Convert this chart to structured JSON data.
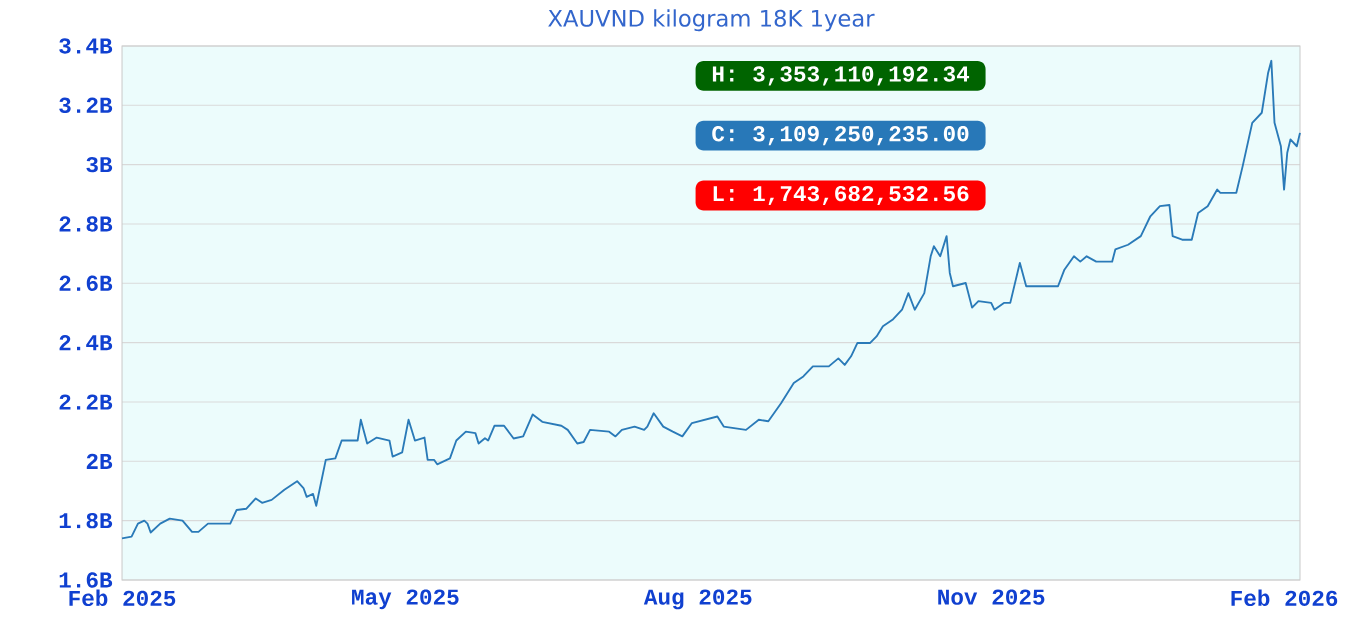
{
  "chart_data": {
    "type": "line",
    "title": "XAUVND kilogram 18K 1year",
    "annotations": [
      "H: 3,353,110,192.34",
      "C: 3,109,250,235.00",
      "L: 1,743,682,532.56"
    ],
    "x": [
      "2025-02-01",
      "2025-02-04",
      "2025-02-06",
      "2025-02-08",
      "2025-02-09",
      "2025-02-10",
      "2025-02-13",
      "2025-02-16",
      "2025-02-20",
      "2025-02-23",
      "2025-02-25",
      "2025-02-28",
      "2025-03-07",
      "2025-03-09",
      "2025-03-12",
      "2025-03-15",
      "2025-03-17",
      "2025-03-20",
      "2025-03-24",
      "2025-03-28",
      "2025-03-30",
      "2025-03-31",
      "2025-04-02",
      "2025-04-03",
      "2025-04-06",
      "2025-04-09",
      "2025-04-11",
      "2025-04-16",
      "2025-04-17",
      "2025-04-19",
      "2025-04-22",
      "2025-04-26",
      "2025-04-27",
      "2025-04-30",
      "2025-05-02",
      "2025-05-04",
      "2025-05-07",
      "2025-05-08",
      "2025-05-10",
      "2025-05-11",
      "2025-05-15",
      "2025-05-17",
      "2025-05-20",
      "2025-05-23",
      "2025-05-24",
      "2025-05-26",
      "2025-05-27",
      "2025-05-29",
      "2025-06-01",
      "2025-06-04",
      "2025-06-07",
      "2025-06-10",
      "2025-06-13",
      "2025-06-19",
      "2025-06-21",
      "2025-06-24",
      "2025-06-26",
      "2025-06-28",
      "2025-07-04",
      "2025-07-06",
      "2025-07-08",
      "2025-07-12",
      "2025-07-15",
      "2025-07-16",
      "2025-07-18",
      "2025-07-21",
      "2025-07-24",
      "2025-07-27",
      "2025-07-30",
      "2025-08-07",
      "2025-08-09",
      "2025-08-16",
      "2025-08-20",
      "2025-08-23",
      "2025-08-27",
      "2025-08-31",
      "2025-09-03",
      "2025-09-06",
      "2025-09-11",
      "2025-09-14",
      "2025-09-16",
      "2025-09-18",
      "2025-09-20",
      "2025-09-24",
      "2025-09-26",
      "2025-09-28",
      "2025-10-01",
      "2025-10-04",
      "2025-10-06",
      "2025-10-08",
      "2025-10-11",
      "2025-10-13",
      "2025-10-14",
      "2025-10-16",
      "2025-10-18",
      "2025-10-19",
      "2025-10-20",
      "2025-10-24",
      "2025-10-26",
      "2025-10-28",
      "2025-11-01",
      "2025-11-02",
      "2025-11-05",
      "2025-11-07",
      "2025-11-10",
      "2025-11-12",
      "2025-11-16",
      "2025-11-22",
      "2025-11-24",
      "2025-11-27",
      "2025-11-29",
      "2025-12-01",
      "2025-12-04",
      "2025-12-09",
      "2025-12-10",
      "2025-12-14",
      "2025-12-18",
      "2025-12-21",
      "2025-12-24",
      "2025-12-27",
      "2025-12-28",
      "2025-12-31",
      "2026-01-03",
      "2026-01-05",
      "2026-01-08",
      "2026-01-11",
      "2026-01-12",
      "2026-01-17",
      "2026-01-19",
      "2026-01-22",
      "2026-01-25",
      "2026-01-27",
      "2026-01-28",
      "2026-01-29",
      "2026-01-31",
      "2026-02-01",
      "2026-02-02",
      "2026-02-03",
      "2026-02-05",
      "2026-02-06"
    ],
    "series": [
      {
        "color": "#2a7ab8",
        "values": [
          1.74,
          1.746,
          1.79,
          1.8,
          1.79,
          1.76,
          1.79,
          1.807,
          1.8,
          1.762,
          1.762,
          1.79,
          1.79,
          1.836,
          1.84,
          1.875,
          1.86,
          1.87,
          1.904,
          1.933,
          1.91,
          1.88,
          1.89,
          1.85,
          2.005,
          2.01,
          2.07,
          2.07,
          2.14,
          2.06,
          2.08,
          2.07,
          2.016,
          2.03,
          2.14,
          2.07,
          2.08,
          2.005,
          2.005,
          1.99,
          2.01,
          2.07,
          2.1,
          2.095,
          2.06,
          2.078,
          2.07,
          2.12,
          2.12,
          2.077,
          2.084,
          2.158,
          2.133,
          2.12,
          2.106,
          2.06,
          2.065,
          2.106,
          2.1,
          2.084,
          2.106,
          2.117,
          2.106,
          2.117,
          2.162,
          2.117,
          2.1,
          2.084,
          2.129,
          2.151,
          2.117,
          2.106,
          2.14,
          2.135,
          2.196,
          2.264,
          2.286,
          2.32,
          2.32,
          2.347,
          2.325,
          2.354,
          2.399,
          2.399,
          2.421,
          2.455,
          2.477,
          2.511,
          2.567,
          2.511,
          2.567,
          2.691,
          2.725,
          2.691,
          2.759,
          2.635,
          2.59,
          2.601,
          2.518,
          2.54,
          2.534,
          2.511,
          2.534,
          2.534,
          2.669,
          2.59,
          2.59,
          2.59,
          2.646,
          2.691,
          2.673,
          2.691,
          2.673,
          2.673,
          2.714,
          2.73,
          2.759,
          2.826,
          2.86,
          2.864,
          2.759,
          2.747,
          2.747,
          2.837,
          2.86,
          2.916,
          2.905,
          2.905,
          2.995,
          3.141,
          3.175,
          3.31,
          3.35,
          3.141,
          3.062,
          2.916,
          3.04,
          3.085,
          3.062,
          3.107
        ]
      }
    ],
    "xlim": [
      "2025-02-01",
      "2026-02-06"
    ],
    "xticks": [
      {
        "value": "2025-02-01",
        "label": "Feb 2025"
      },
      {
        "value": "2025-05-01",
        "label": "May 2025"
      },
      {
        "value": "2025-08-01",
        "label": "Aug 2025"
      },
      {
        "value": "2025-11-01",
        "label": "Nov 2025"
      },
      {
        "value": "2026-02-01",
        "label": "Feb 2026"
      }
    ],
    "ylim": [
      1.6,
      3.4
    ],
    "yticks": [
      {
        "value": 1.6,
        "label": "1.6B"
      },
      {
        "value": 1.8,
        "label": "1.8B"
      },
      {
        "value": 2,
        "label": "2B"
      },
      {
        "value": 2.2,
        "label": "2.2B"
      },
      {
        "value": 2.4,
        "label": "2.4B"
      },
      {
        "value": 2.6,
        "label": "2.6B"
      },
      {
        "value": 2.8,
        "label": "2.8B"
      },
      {
        "value": 3,
        "label": "3B"
      },
      {
        "value": 3.2,
        "label": "3.2B"
      },
      {
        "value": 3.4,
        "label": "3.4B"
      }
    ],
    "grid": "y"
  }
}
